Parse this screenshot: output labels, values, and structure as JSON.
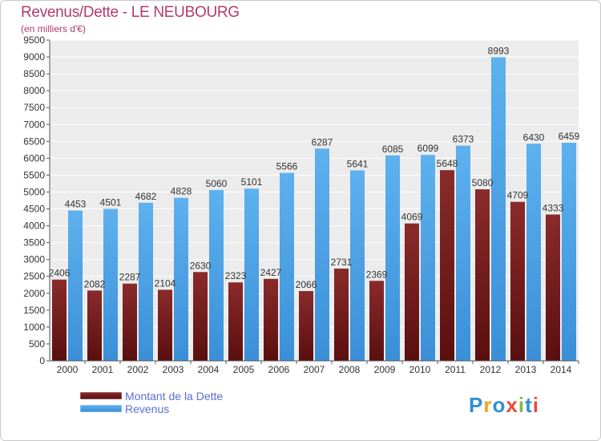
{
  "title": "Revenus/Dette - LE NEUBOURG",
  "subtitle": "(en milliers d'€)",
  "logo_text": "Proxiti",
  "chart_data": {
    "type": "bar",
    "categories": [
      "2000",
      "2001",
      "2002",
      "2003",
      "2004",
      "2005",
      "2006",
      "2007",
      "2008",
      "2009",
      "2010",
      "2011",
      "2012",
      "2013",
      "2014"
    ],
    "series": [
      {
        "name": "Montant de la Dette",
        "color": "#6b1a1a",
        "value_labels": [
          "2406",
          "2082",
          "2287",
          "2104",
          "2630",
          "2323",
          "2427",
          "2066",
          "2731",
          "2369",
          "4069",
          "5648",
          "5080",
          "4709",
          "4333"
        ],
        "values": [
          2406,
          2082,
          2287,
          2104,
          2630,
          2323,
          2427,
          2066,
          2731,
          2369,
          4069,
          5648,
          5080,
          4709,
          4333
        ]
      },
      {
        "name": "Revenus",
        "color": "#4ea3e6",
        "value_labels": [
          "4453",
          "4501",
          "4682",
          "4828",
          "5060",
          "5101",
          "5566",
          "6287",
          "5641",
          "6085",
          "6099",
          "6373",
          "8993",
          "6430",
          "6459"
        ],
        "values": [
          4453,
          4501,
          4682,
          4828,
          5060,
          5101,
          5566,
          6287,
          5641,
          6085,
          6099,
          6373,
          8993,
          6430,
          6459
        ]
      }
    ],
    "ylim": [
      0,
      9500
    ],
    "yticks": [
      "0",
      "500",
      "1000",
      "1500",
      "2000",
      "2500",
      "3000",
      "3500",
      "4000",
      "4500",
      "5000",
      "5500",
      "6000",
      "6500",
      "7000",
      "7500",
      "8000",
      "8500",
      "9000",
      "9500"
    ],
    "grid": true,
    "legend_position": "bottom-left"
  }
}
